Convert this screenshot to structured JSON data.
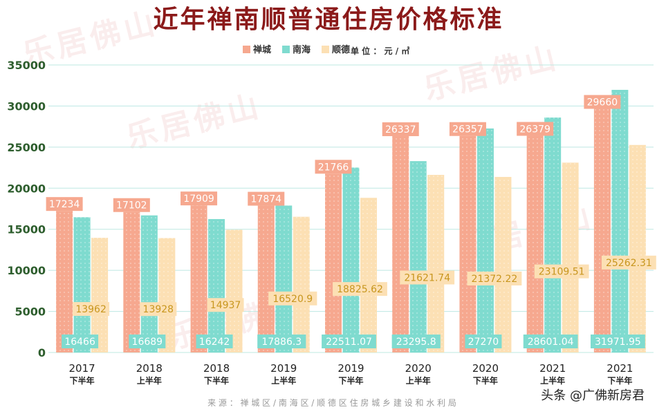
{
  "chart_data": {
    "type": "bar",
    "title": "近年禅南顺普通住房价格标准",
    "unit_label": "单 位 ： 元 / ㎡",
    "categories": [
      {
        "year": "2017",
        "half": "下半年"
      },
      {
        "year": "2018",
        "half": "上半年"
      },
      {
        "year": "2018",
        "half": "下半年"
      },
      {
        "year": "2019",
        "half": "上半年"
      },
      {
        "year": "2019",
        "half": "下半年"
      },
      {
        "year": "2020",
        "half": "上半年"
      },
      {
        "year": "2020",
        "half": "下半年"
      },
      {
        "year": "2021",
        "half": "上半年"
      },
      {
        "year": "2021",
        "half": "下半年"
      }
    ],
    "series": [
      {
        "name": "禅城",
        "color": "#F6A88F",
        "label_bg": "#F6A88F",
        "label_color": "#ffffff",
        "values": [
          17234,
          17102,
          17909,
          17874,
          21766,
          26337,
          26357,
          26379,
          29660
        ],
        "labels": [
          "17234",
          "17102",
          "17909",
          "17874",
          "21766",
          "26337",
          "26357",
          "26379",
          "29660"
        ]
      },
      {
        "name": "南海",
        "color": "#7FDBCF",
        "label_bg": "#7FDBCF",
        "label_color": "#ffffff",
        "values": [
          16466,
          16689,
          16242,
          17886.3,
          22511.07,
          23295.8,
          27270,
          28601.04,
          31971.95
        ],
        "labels": [
          "16466",
          "16689",
          "16242",
          "17886.3",
          "22511.07",
          "23295.8",
          "27270",
          "28601.04",
          "31971.95"
        ]
      },
      {
        "name": "顺德",
        "color": "#FCE0B4",
        "label_bg": "#FCE0B4",
        "label_color": "#C8961E",
        "values": [
          13962,
          13928,
          14937,
          16520.9,
          18825.62,
          21621.74,
          21372.22,
          23109.51,
          25262.31
        ],
        "labels": [
          "13962",
          "13928",
          "14937",
          "16520.9",
          "18825.62",
          "21621.74",
          "21372.22",
          "23109.51",
          "25262.31"
        ]
      }
    ],
    "y_ticks": [
      "0",
      "5000",
      "10000",
      "15000",
      "20000",
      "25000",
      "30000",
      "35000"
    ],
    "ylim": [
      0,
      35000
    ],
    "grid": true,
    "legend_position": "top-center"
  },
  "footer": {
    "source": "来 源 ： 禅 城 区 / 南 海 区 / 顺 德 区 住 房 城 乡 建 设 和 水 利 局",
    "credit": "头条 @广佛新房君"
  },
  "watermark": "乐居佛山"
}
